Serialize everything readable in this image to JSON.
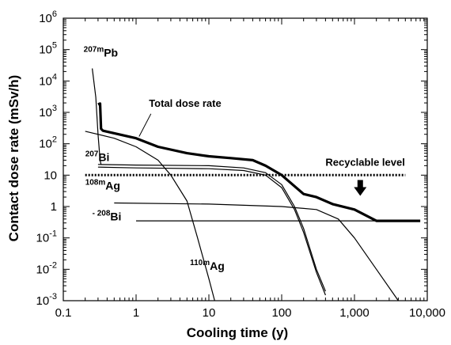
{
  "chart_data": {
    "type": "line",
    "xlabel": "Cooling time (y)",
    "ylabel": "Contact dose rate (mSv/h)",
    "xscale": "log",
    "yscale": "log",
    "xlim": [
      0.1,
      10000
    ],
    "ylim": [
      0.001,
      1000000
    ],
    "x_ticks": [
      {
        "v": 0.1,
        "label": "0.1"
      },
      {
        "v": 1,
        "label": "1"
      },
      {
        "v": 10,
        "label": "10"
      },
      {
        "v": 100,
        "label": "100"
      },
      {
        "v": 1000,
        "label": "1,000"
      },
      {
        "v": 10000,
        "label": "10,000"
      }
    ],
    "y_ticks": [
      {
        "v": 1000000,
        "base": "10",
        "exp": "6"
      },
      {
        "v": 100000,
        "base": "10",
        "exp": "5"
      },
      {
        "v": 10000,
        "base": "10",
        "exp": "4"
      },
      {
        "v": 1000,
        "base": "10",
        "exp": "3"
      },
      {
        "v": 100,
        "base": "10",
        "exp": "2"
      },
      {
        "v": 10,
        "base": "10",
        "exp": ""
      },
      {
        "v": 1,
        "base": "1",
        "exp": ""
      },
      {
        "v": 0.1,
        "base": "10",
        "exp": "-1"
      },
      {
        "v": 0.01,
        "base": "10",
        "exp": "-2"
      },
      {
        "v": 0.001,
        "base": "10",
        "exp": "-3"
      }
    ],
    "grid": false,
    "series": [
      {
        "name": "Total dose rate",
        "style": "thick",
        "points": [
          [
            0.3,
            1800
          ],
          [
            0.32,
            1900
          ],
          [
            0.33,
            300
          ],
          [
            0.35,
            260
          ],
          [
            1,
            150
          ],
          [
            2,
            80
          ],
          [
            5,
            50
          ],
          [
            10,
            40
          ],
          [
            20,
            35
          ],
          [
            40,
            30
          ],
          [
            60,
            20
          ],
          [
            100,
            10
          ],
          [
            200,
            2.5
          ],
          [
            300,
            2
          ],
          [
            500,
            1.2
          ],
          [
            1000,
            0.8
          ],
          [
            2000,
            0.35
          ],
          [
            4000,
            0.35
          ],
          [
            8000,
            0.35
          ]
        ]
      },
      {
        "name": "207mPb",
        "style": "thin",
        "points": [
          [
            0.25,
            25000
          ],
          [
            0.28,
            3000
          ],
          [
            0.3,
            200
          ],
          [
            0.32,
            30
          ],
          [
            0.33,
            22
          ]
        ]
      },
      {
        "name": "110mAg",
        "style": "thin",
        "points": [
          [
            0.2,
            250
          ],
          [
            0.5,
            150
          ],
          [
            1,
            80
          ],
          [
            2,
            30
          ],
          [
            3,
            10
          ],
          [
            5,
            1.5
          ],
          [
            7,
            0.1
          ],
          [
            10,
            0.005
          ],
          [
            12,
            0.001
          ]
        ]
      },
      {
        "name": "207Bi",
        "style": "thin",
        "points": [
          [
            0.3,
            22
          ],
          [
            1,
            21
          ],
          [
            10,
            20
          ],
          [
            30,
            17
          ],
          [
            60,
            12
          ],
          [
            100,
            5
          ],
          [
            150,
            1
          ],
          [
            200,
            0.2
          ],
          [
            300,
            0.01
          ],
          [
            400,
            0.002
          ]
        ]
      },
      {
        "name": "",
        "style": "thin",
        "points": [
          [
            0.3,
            18
          ],
          [
            1,
            17
          ],
          [
            10,
            16
          ],
          [
            30,
            14
          ],
          [
            60,
            10
          ],
          [
            100,
            4
          ],
          [
            150,
            0.8
          ],
          [
            200,
            0.15
          ],
          [
            300,
            0.008
          ],
          [
            400,
            0.0015
          ]
        ]
      },
      {
        "name": "108mAg",
        "style": "thin",
        "points": [
          [
            0.5,
            1.3
          ],
          [
            10,
            1.2
          ],
          [
            100,
            1.0
          ],
          [
            300,
            0.8
          ],
          [
            600,
            0.4
          ],
          [
            1000,
            0.1
          ],
          [
            2000,
            0.01
          ],
          [
            4000,
            0.001
          ]
        ]
      },
      {
        "name": "208Bi",
        "style": "thin",
        "points": [
          [
            1,
            0.35
          ],
          [
            10,
            0.35
          ],
          [
            100,
            0.35
          ],
          [
            1000,
            0.35
          ],
          [
            8000,
            0.35
          ]
        ]
      },
      {
        "name": "Recyclable level",
        "style": "dashed",
        "points": [
          [
            0.2,
            10
          ],
          [
            5000,
            10
          ]
        ]
      }
    ],
    "annotations": [
      {
        "id": "207mPb",
        "base": "Pb",
        "sup": "207m",
        "x": 0.19,
        "y": 60000
      },
      {
        "id": "total",
        "base": "Total dose rate",
        "sup": "",
        "x": 1.5,
        "y": 1500
      },
      {
        "id": "207Bi",
        "base": "Bi",
        "sup": "207",
        "x": 0.2,
        "y": 28
      },
      {
        "id": "108mAg",
        "base": "Ag",
        "sup": "108m",
        "x": 0.2,
        "y": 3.5
      },
      {
        "id": "208Bi",
        "base": "Bi",
        "sup": "- 208",
        "x": 0.25,
        "y": 0.36
      },
      {
        "id": "110mAg",
        "base": "Ag",
        "sup": "110m",
        "x": 5.5,
        "y": 0.0095
      },
      {
        "id": "recyclable",
        "base": "Recyclable level",
        "sup": "",
        "x": 400,
        "y": 20
      }
    ]
  }
}
